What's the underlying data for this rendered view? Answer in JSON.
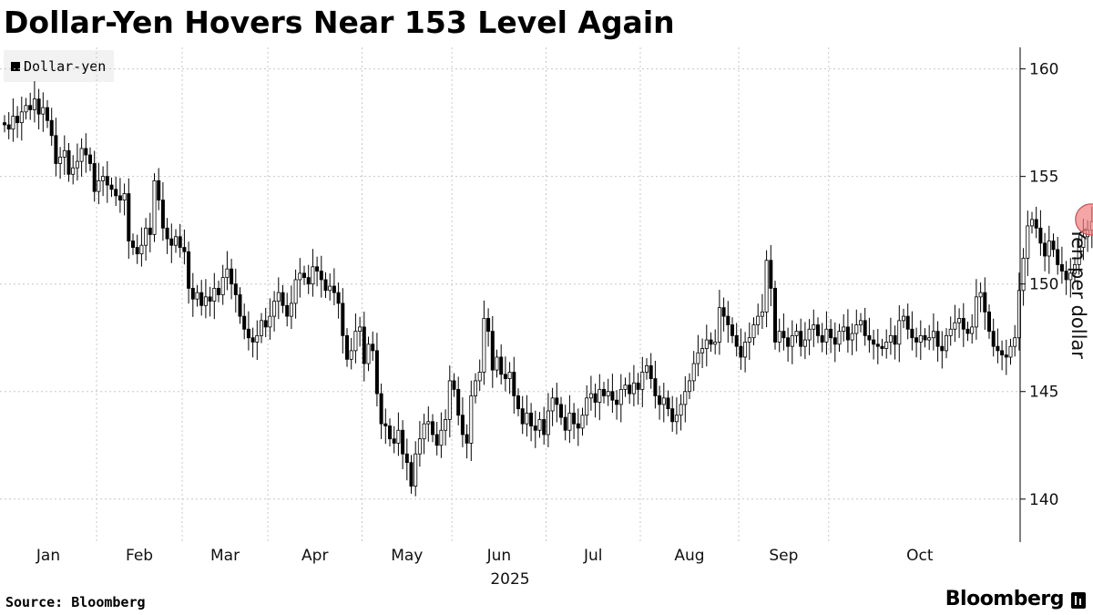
{
  "page": {
    "title": "Dollar-Yen Hovers Near 153 Level Again",
    "source": "Source: Bloomberg",
    "brand": "Bloomberg",
    "brand_icon": "bloomberg-bars-icon"
  },
  "chart_data": {
    "type": "candlestick",
    "title": "Dollar-Yen Hovers Near 153 Level Again",
    "ylabel": "Yen per dollar",
    "xlabel": "2025",
    "ylim": [
      138,
      161
    ],
    "yticks": [
      140,
      145,
      150,
      155,
      160
    ],
    "xticks": [
      "Jan",
      "Feb",
      "Mar",
      "Apr",
      "May",
      "Jun",
      "Jul",
      "Aug",
      "Sep",
      "Oct"
    ],
    "grid": true,
    "legend": {
      "position": "top-left",
      "entries": [
        "Dollar-yen"
      ]
    },
    "highlight": {
      "value": 153.0,
      "color": "#f08080"
    },
    "series": [
      {
        "name": "Dollar-yen",
        "color": "#000000",
        "closes": [
          157.4,
          157.2,
          157.8,
          157.5,
          158.0,
          158.3,
          158.1,
          158.6,
          157.9,
          158.2,
          157.6,
          156.9,
          155.6,
          155.9,
          156.2,
          155.1,
          155.4,
          155.7,
          156.3,
          156.0,
          155.6,
          154.3,
          154.8,
          155.0,
          154.6,
          154.4,
          154.1,
          153.9,
          154.2,
          152.0,
          151.7,
          151.4,
          151.8,
          152.6,
          152.3,
          154.8,
          153.9,
          152.6,
          152.1,
          151.8,
          152.2,
          151.7,
          151.5,
          149.8,
          149.3,
          149.6,
          149.0,
          149.4,
          149.2,
          149.8,
          149.5,
          150.3,
          150.7,
          150.0,
          149.5,
          148.5,
          147.9,
          147.5,
          147.3,
          147.6,
          148.3,
          148.0,
          148.5,
          149.2,
          149.6,
          149.0,
          148.5,
          149.1,
          150.2,
          150.5,
          150.3,
          150.0,
          150.8,
          150.6,
          150.2,
          149.7,
          149.9,
          149.6,
          149.1,
          147.6,
          146.5,
          146.9,
          147.8,
          148.0,
          146.3,
          147.2,
          146.9,
          144.9,
          143.5,
          143.4,
          142.8,
          142.6,
          143.2,
          142.1,
          141.7,
          140.6,
          142.1,
          142.8,
          143.5,
          143.6,
          143.0,
          142.5,
          143.2,
          143.7,
          145.5,
          145.1,
          143.9,
          143.0,
          142.6,
          144.8,
          145.5,
          145.9,
          148.4,
          147.8,
          146.0,
          146.6,
          145.8,
          145.6,
          145.9,
          144.8,
          144.2,
          143.5,
          144.0,
          143.4,
          143.2,
          143.7,
          143.0,
          144.1,
          144.7,
          144.4,
          143.8,
          143.2,
          144.0,
          143.5,
          143.3,
          143.9,
          144.7,
          144.9,
          144.5,
          145.1,
          144.8,
          145.0,
          144.6,
          144.4,
          145.1,
          145.3,
          144.9,
          145.4,
          145.1,
          145.9,
          146.2,
          145.6,
          144.8,
          144.4,
          144.7,
          144.2,
          143.6,
          143.9,
          144.4,
          145.0,
          145.5,
          146.3,
          146.8,
          147.0,
          147.4,
          147.2,
          147.3,
          148.9,
          148.5,
          148.1,
          147.6,
          147.1,
          146.6,
          147.3,
          147.5,
          148.1,
          148.5,
          148.7,
          151.1,
          149.8,
          147.3,
          147.8,
          147.5,
          147.1,
          147.6,
          147.8,
          147.1,
          147.4,
          147.9,
          148.1,
          147.6,
          147.3,
          147.9,
          147.5,
          147.2,
          147.8,
          148.0,
          147.4,
          147.7,
          148.1,
          148.3,
          147.6,
          147.4,
          147.2,
          147.1,
          147.0,
          147.3,
          147.6,
          147.2,
          148.3,
          148.5,
          147.9,
          147.5,
          147.3,
          147.6,
          147.4,
          147.5,
          147.8,
          147.1,
          146.9,
          147.6,
          147.9,
          148.2,
          148.4,
          147.9,
          147.7,
          148.0,
          149.4,
          149.6,
          148.7,
          147.8,
          147.1,
          146.9,
          146.7,
          146.6
        ],
        "closes_tail": [
          147.1,
          147.5,
          149.7,
          151.2,
          152.7,
          153.0,
          152.6,
          151.9,
          151.3,
          152.0,
          151.6,
          150.9,
          150.6,
          150.2,
          150.5,
          150.9,
          151.7,
          152.2,
          152.5,
          152.9
        ]
      }
    ]
  }
}
